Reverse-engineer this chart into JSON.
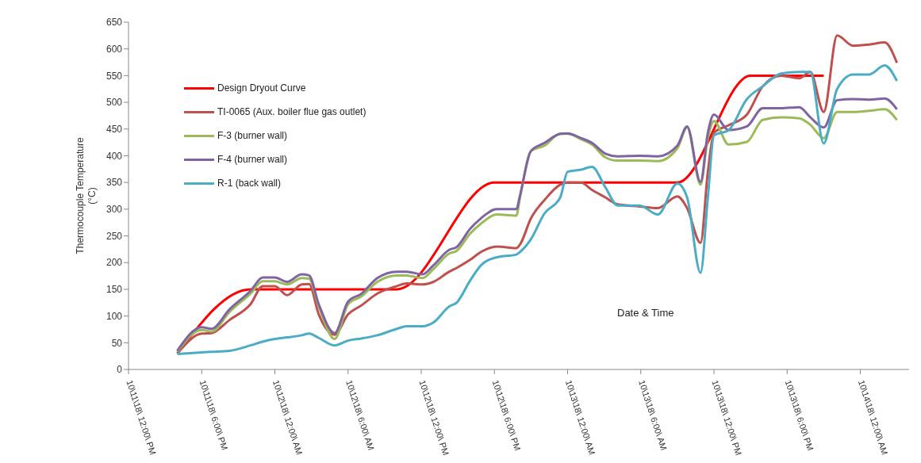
{
  "chart_data": {
    "type": "line",
    "xlabel": "Date & Time",
    "ylabel": "Thermocouple Temperature\n(°C)",
    "xlim": [
      "--10-11T12:00",
      "--10-14T04:00"
    ],
    "xticks": [
      {
        "value": "--10-11T12:00",
        "label": "10\\11\\18\\ 12:00\\ PM"
      },
      {
        "value": "--10-11T18:00",
        "label": "10\\11\\18\\ 6:00\\ PM"
      },
      {
        "value": "--10-12T00:00",
        "label": "10\\12\\18\\ 12:00\\ AM"
      },
      {
        "value": "--10-12T06:00",
        "label": "10\\12\\18\\ 6:00\\ AM"
      },
      {
        "value": "--10-12T12:00",
        "label": "10\\12\\18\\ 12:00\\ PM"
      },
      {
        "value": "--10-12T18:00",
        "label": "10\\12\\18\\ 6:00\\ PM"
      },
      {
        "value": "--10-13T00:00",
        "label": "10\\13\\18\\ 12:00\\ AM"
      },
      {
        "value": "--10-13T06:00",
        "label": "10\\13\\18\\ 6:00\\ AM"
      },
      {
        "value": "--10-13T12:00",
        "label": "10\\13\\18\\ 12:00\\ PM"
      },
      {
        "value": "--10-13T18:00",
        "label": "10\\13\\18\\ 6:00\\ PM"
      },
      {
        "value": "--10-14T00:00",
        "label": "10\\14\\18\\ 12:00\\ AM"
      }
    ],
    "ylim": [
      0,
      650
    ],
    "yticks": [
      0,
      50,
      100,
      150,
      200,
      250,
      300,
      350,
      400,
      450,
      500,
      550,
      600,
      650
    ],
    "legend": "top left",
    "x": [
      "--10-11T16:00",
      "--10-11T18:00",
      "--10-11T18:48",
      "--10-11T20:18",
      "--10-11T22:00",
      "--10-11T23:00",
      "--10-12T00:00",
      "--10-12T01:00",
      "--10-12T02:12",
      "--10-12T02:48",
      "--10-12T03:36",
      "--10-12T04:54",
      "--10-12T06:00",
      "--10-12T07:06",
      "--10-12T08:24",
      "--10-12T10:00",
      "--10-12T10:48",
      "--10-12T12:06",
      "--10-12T13:00",
      "--10-12T14:18",
      "--10-12T14:54",
      "--10-12T16:00",
      "--10-12T16:54",
      "--10-12T18:12",
      "--10-12T19:48",
      "--10-12T20:06",
      "--10-12T21:00",
      "--10-12T22:06",
      "--10-12T23:24",
      "--10-13T00:00",
      "--10-13T01:06",
      "--10-13T02:00",
      "--10-13T03:06",
      "--10-13T04:06",
      "--10-13T05:54",
      "--10-13T07:24",
      "--10-13T09:00",
      "--10-13T09:48",
      "--10-13T10:54",
      "--10-13T11:30",
      "--10-13T12:00",
      "--10-13T13:12",
      "--10-13T14:42",
      "--10-13T16:00",
      "--10-13T17:30",
      "--10-13T19:00",
      "--10-13T19:54",
      "--10-13T21:00",
      "--10-13T22:06",
      "--10-13T23:24",
      "--10-14T00:42",
      "--10-14T02:00",
      "--10-14T03:00"
    ],
    "series": [
      {
        "name": "Design Dryout Curve",
        "color": "#ff0000",
        "x": [
          "--10-11T16:00",
          "--10-11T22:00",
          "--10-12T10:00",
          "--10-12T18:00",
          "--10-13T09:00",
          "--10-13T15:00",
          "--10-13T21:00"
        ],
        "values": [
          30,
          150,
          150,
          350,
          350,
          550,
          550
        ]
      },
      {
        "name": "TI-0065 (Aux. boiler flue gas outlet)",
        "color": "#c0504d",
        "values": [
          30,
          67,
          68,
          93,
          122,
          156,
          156,
          139,
          159,
          160,
          103,
          65,
          103,
          120,
          142,
          156,
          161,
          159,
          164,
          183,
          190,
          205,
          220,
          230,
          227,
          234,
          283,
          317,
          346,
          350,
          350,
          336,
          322,
          309,
          305,
          302,
          324,
          302,
          237,
          370,
          443,
          457,
          477,
          530,
          550,
          545,
          557,
          482,
          625,
          606,
          608,
          612,
          574
        ]
      },
      {
        "name": "F-3 (burner wall)",
        "color": "#9bbb59",
        "values": [
          33,
          74,
          71,
          108,
          142,
          165,
          165,
          159,
          171,
          170,
          118,
          57,
          122,
          137,
          164,
          176,
          176,
          171,
          188,
          217,
          222,
          254,
          273,
          290,
          288,
          322,
          409,
          419,
          441,
          441,
          431,
          421,
          397,
          391,
          391,
          390,
          414,
          453,
          346,
          433,
          465,
          421,
          426,
          467,
          472,
          470,
          458,
          433,
          482,
          482,
          484,
          487,
          467
        ]
      },
      {
        "name": "F-4 (burner wall)",
        "color": "#8064a2",
        "values": [
          35,
          79,
          76,
          113,
          147,
          172,
          172,
          164,
          178,
          176,
          122,
          68,
          127,
          142,
          171,
          183,
          183,
          178,
          195,
          224,
          229,
          263,
          283,
          300,
          300,
          326,
          409,
          424,
          441,
          442,
          433,
          424,
          404,
          399,
          400,
          399,
          419,
          455,
          351,
          443,
          477,
          448,
          455,
          489,
          489,
          491,
          472,
          453,
          504,
          506,
          505,
          507,
          487
        ]
      },
      {
        "name": "R-1 (back wall)",
        "color": "#4bacc6",
        "values": [
          29,
          32,
          33,
          35,
          45,
          52,
          57,
          60,
          64,
          67,
          59,
          45,
          54,
          58,
          64,
          76,
          81,
          81,
          88,
          118,
          125,
          166,
          195,
          210,
          215,
          220,
          244,
          292,
          322,
          370,
          374,
          379,
          341,
          307,
          307,
          290,
          348,
          322,
          181,
          322,
          438,
          448,
          506,
          530,
          554,
          557,
          557,
          423,
          525,
          552,
          552,
          569,
          540
        ]
      }
    ]
  }
}
